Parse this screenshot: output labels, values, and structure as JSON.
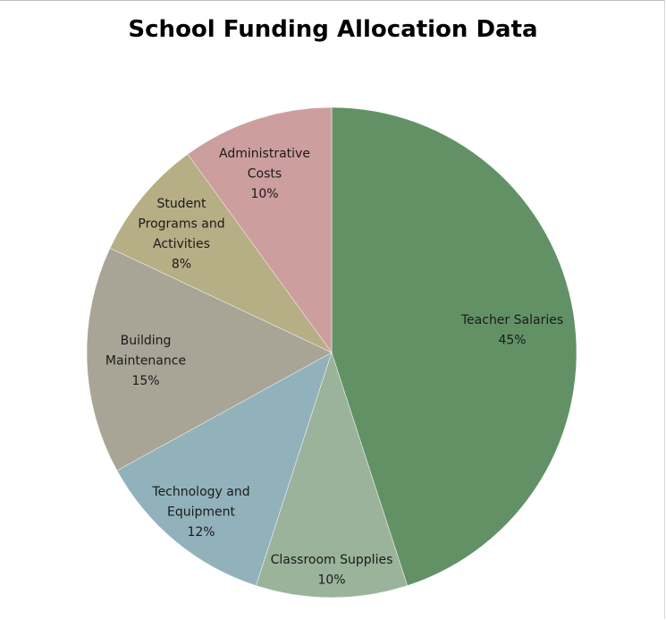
{
  "chart_data": {
    "type": "pie",
    "title": "School Funding Allocation Data",
    "slices": [
      {
        "label": [
          "Teacher Salaries"
        ],
        "value": 45,
        "value_label": "45%",
        "color": "#629166"
      },
      {
        "label": [
          "Classroom Supplies"
        ],
        "value": 10,
        "value_label": "10%",
        "color": "#9bb39b"
      },
      {
        "label": [
          "Technology and",
          "Equipment"
        ],
        "value": 12,
        "value_label": "12%",
        "color": "#92b2bb"
      },
      {
        "label": [
          "Building",
          "Maintenance"
        ],
        "value": 15,
        "value_label": "15%",
        "color": "#a8a596"
      },
      {
        "label": [
          "Student",
          "Programs and",
          "Activities"
        ],
        "value": 8,
        "value_label": "8%",
        "color": "#b6ae85"
      },
      {
        "label": [
          "Administrative",
          "Costs"
        ],
        "value": 10,
        "value_label": "10%",
        "color": "#cd9e9e"
      }
    ]
  }
}
